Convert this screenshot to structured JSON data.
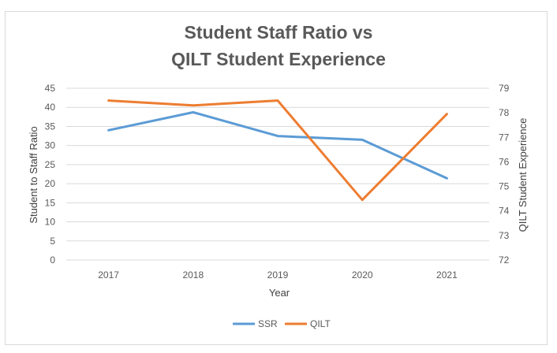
{
  "chart_data": {
    "type": "line",
    "title_line1": "Student Staff Ratio vs",
    "title_line2": "QILT Student Experience",
    "xlabel": "Year",
    "ylabel_left": "Student to Staff Ratio",
    "ylabel_right": "QILT Student Experience",
    "categories": [
      "2017",
      "2018",
      "2019",
      "2020",
      "2021"
    ],
    "y_left": {
      "min": 0,
      "max": 45,
      "step": 5,
      "ticks": [
        "0",
        "5",
        "10",
        "15",
        "20",
        "25",
        "30",
        "35",
        "40",
        "45"
      ]
    },
    "y_right": {
      "min": 72,
      "max": 79,
      "step": 1,
      "ticks": [
        "72",
        "73",
        "74",
        "75",
        "76",
        "77",
        "78",
        "79"
      ]
    },
    "grid": true,
    "legend_position": "bottom",
    "series": [
      {
        "name": "SSR",
        "axis": "left",
        "color": "#5b9bd5",
        "values": [
          34,
          38.7,
          32.5,
          31.5,
          21.4
        ]
      },
      {
        "name": "QILT",
        "axis": "right",
        "color": "#ed7d31",
        "values": [
          78.5,
          78.3,
          78.5,
          74.45,
          77.95
        ]
      }
    ]
  }
}
